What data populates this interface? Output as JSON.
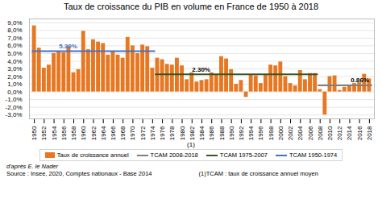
{
  "chart_data": {
    "type": "bar",
    "title": "Taux de croissance du PIB en volume en France de 1950 à 2018",
    "x": [
      1950,
      1951,
      1952,
      1953,
      1954,
      1955,
      1956,
      1957,
      1958,
      1959,
      1960,
      1961,
      1962,
      1963,
      1964,
      1965,
      1966,
      1967,
      1968,
      1969,
      1970,
      1971,
      1972,
      1973,
      1974,
      1975,
      1976,
      1977,
      1978,
      1979,
      1980,
      1981,
      1982,
      1983,
      1984,
      1985,
      1986,
      1987,
      1988,
      1989,
      1990,
      1991,
      1992,
      1993,
      1994,
      1995,
      1996,
      1997,
      1998,
      1999,
      2000,
      2001,
      2002,
      2003,
      2004,
      2005,
      2006,
      2007,
      2008,
      2009,
      2010,
      2011,
      2012,
      2013,
      2014,
      2015,
      2016,
      2017,
      2018
    ],
    "xlim": [
      1949,
      2019
    ],
    "xticks": [
      1950,
      1952,
      1954,
      1956,
      1958,
      1960,
      1962,
      1964,
      1966,
      1968,
      1970,
      1972,
      1974,
      1976,
      1978,
      1980,
      1982,
      1984,
      1986,
      1988,
      1990,
      1992,
      1994,
      1996,
      1998,
      2000,
      2002,
      2004,
      2006,
      2008,
      2010,
      2012,
      2014,
      2016,
      2018
    ],
    "ylim": [
      -3.5,
      9.5
    ],
    "yticks": [
      {
        "value": -3.0,
        "label": "-3,0%"
      },
      {
        "value": -2.0,
        "label": "-2,0%"
      },
      {
        "value": -1.0,
        "label": "-1,0%"
      },
      {
        "value": 0.0,
        "label": "0,0%"
      },
      {
        "value": 1.0,
        "label": "1,0%"
      },
      {
        "value": 2.0,
        "label": "2,0%"
      },
      {
        "value": 3.0,
        "label": "3,0%"
      },
      {
        "value": 4.0,
        "label": "4,0%"
      },
      {
        "value": 5.0,
        "label": "5,0%"
      },
      {
        "value": 6.0,
        "label": "6,0%"
      },
      {
        "value": 7.0,
        "label": "7,0%"
      },
      {
        "value": 8.0,
        "label": "8,0%"
      },
      {
        "value": 9.0,
        "label": "9,0%"
      }
    ],
    "grid": true,
    "legend": "bottom",
    "series": [
      {
        "name": "Taux de croissance annuel",
        "type": "bar",
        "color": "#E87722",
        "values": [
          8.6,
          5.7,
          3.1,
          3.5,
          5.0,
          5.3,
          5.1,
          5.9,
          2.5,
          2.9,
          7.9,
          5.5,
          6.8,
          6.5,
          6.3,
          4.8,
          5.3,
          4.8,
          4.4,
          7.1,
          6.0,
          5.0,
          6.1,
          5.9,
          3.1,
          4.4,
          4.2,
          3.6,
          3.5,
          4.4,
          3.4,
          1.6,
          2.5,
          1.3,
          1.5,
          1.6,
          2.5,
          2.3,
          4.6,
          4.3,
          2.9,
          1.0,
          1.5,
          -0.7,
          2.2,
          2.1,
          1.1,
          2.3,
          3.5,
          3.4,
          3.9,
          2.0,
          1.1,
          0.8,
          2.8,
          1.6,
          2.4,
          2.4,
          0.3,
          -3.0,
          2.0,
          2.1,
          0.2,
          0.6,
          0.9,
          1.1,
          1.2,
          2.3,
          1.7
        ]
      },
      {
        "name": "TCAM 2008-2018",
        "type": "line",
        "color": "#808080",
        "values": [
          null,
          null,
          null,
          null,
          null,
          null,
          null,
          null,
          null,
          null,
          null,
          null,
          null,
          null,
          null,
          null,
          null,
          null,
          null,
          null,
          null,
          null,
          null,
          null,
          null,
          null,
          null,
          null,
          null,
          null,
          null,
          null,
          null,
          null,
          null,
          null,
          null,
          null,
          null,
          null,
          null,
          null,
          null,
          null,
          null,
          null,
          null,
          null,
          null,
          null,
          null,
          null,
          null,
          null,
          null,
          null,
          null,
          null,
          0.86,
          0.86,
          0.86,
          0.86,
          0.86,
          0.86,
          0.86,
          0.86,
          0.86,
          0.86,
          0.86
        ]
      },
      {
        "name": "TCAM 1975-2007",
        "type": "line",
        "color": "#375623",
        "values": [
          null,
          null,
          null,
          null,
          null,
          null,
          null,
          null,
          null,
          null,
          null,
          null,
          null,
          null,
          null,
          null,
          null,
          null,
          null,
          null,
          null,
          null,
          null,
          null,
          null,
          2.3,
          2.3,
          2.3,
          2.3,
          2.3,
          2.3,
          2.3,
          2.3,
          2.3,
          2.3,
          2.3,
          2.3,
          2.3,
          2.3,
          2.3,
          2.3,
          2.3,
          2.3,
          2.3,
          2.3,
          2.3,
          2.3,
          2.3,
          2.3,
          2.3,
          2.3,
          2.3,
          2.3,
          2.3,
          2.3,
          2.3,
          2.3,
          2.3,
          null,
          null,
          null,
          null,
          null,
          null,
          null,
          null,
          null,
          null,
          null
        ]
      },
      {
        "name": "TCAM 1950-1974",
        "type": "line",
        "color": "#4472C4",
        "values": [
          5.3,
          5.3,
          5.3,
          5.3,
          5.3,
          5.3,
          5.3,
          5.3,
          5.3,
          5.3,
          5.3,
          5.3,
          5.3,
          5.3,
          5.3,
          5.3,
          5.3,
          5.3,
          5.3,
          5.3,
          5.3,
          5.3,
          5.3,
          5.3,
          5.3,
          null,
          null,
          null,
          null,
          null,
          null,
          null,
          null,
          null,
          null,
          null,
          null,
          null,
          null,
          null,
          null,
          null,
          null,
          null,
          null,
          null,
          null,
          null,
          null,
          null,
          null,
          null,
          null,
          null,
          null,
          null,
          null,
          null,
          null,
          null,
          null,
          null,
          null,
          null,
          null,
          null,
          null,
          null,
          null
        ]
      }
    ],
    "annotations": [
      {
        "text": "5.30%",
        "x": 1955,
        "y": 5.3,
        "color": "#4472C4"
      },
      {
        "text": "2.30%",
        "x": 1982,
        "y": 2.3
      },
      {
        "text": "0.86%",
        "x": 2014.2,
        "y": 0.86
      }
    ],
    "footnote": "(1)",
    "author": "d'après E. le Nader",
    "source": "Source : Insee, 2020, Comptes nationaux - Base 2014",
    "note": "(1)TCAM : taux de croissance annuel moyen"
  }
}
